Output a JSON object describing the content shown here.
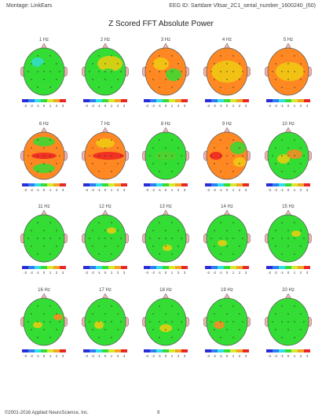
{
  "header": {
    "montage": "Montage: LinkEars",
    "eeg_id": "EEG ID: Sartdare Vltsar_2C1_serial_number_1600240_(60)"
  },
  "title": "Z Scored FFT Absolute Power",
  "scale_ticks": [
    "-3",
    "-2",
    "-1",
    "0",
    "1",
    "2",
    "3"
  ],
  "colors": {
    "green": "#33dd33",
    "yellow": "#eecc11",
    "orange": "#ff8822",
    "red": "#ee2222",
    "cyan": "#33ddcc",
    "blue": "#2244ee"
  },
  "maps": [
    {
      "label": "1 Hz",
      "base": "green"
    },
    {
      "label": "2 Hz",
      "base": "green"
    },
    {
      "label": "3 Hz",
      "base": "orange"
    },
    {
      "label": "4 Hz",
      "base": "orange"
    },
    {
      "label": "5 Hz",
      "base": "orange"
    },
    {
      "label": "6 Hz",
      "base": "orange"
    },
    {
      "label": "7 Hz",
      "base": "orange"
    },
    {
      "label": "8 Hz",
      "base": "green"
    },
    {
      "label": "9 Hz",
      "base": "orange"
    },
    {
      "label": "10 Hz",
      "base": "green"
    },
    {
      "label": "11 Hz",
      "base": "green"
    },
    {
      "label": "12 Hz",
      "base": "green"
    },
    {
      "label": "13 Hz",
      "base": "green"
    },
    {
      "label": "14 Hz",
      "base": "green"
    },
    {
      "label": "15 Hz",
      "base": "green"
    },
    {
      "label": "16 Hz",
      "base": "green"
    },
    {
      "label": "17 Hz",
      "base": "green"
    },
    {
      "label": "18 Hz",
      "base": "green"
    },
    {
      "label": "19 Hz",
      "base": "green"
    },
    {
      "label": "20 Hz",
      "base": "green"
    }
  ],
  "footer": {
    "copyright": "©2001-2016 Applied NeuroScience, Inc.",
    "page": "9"
  }
}
